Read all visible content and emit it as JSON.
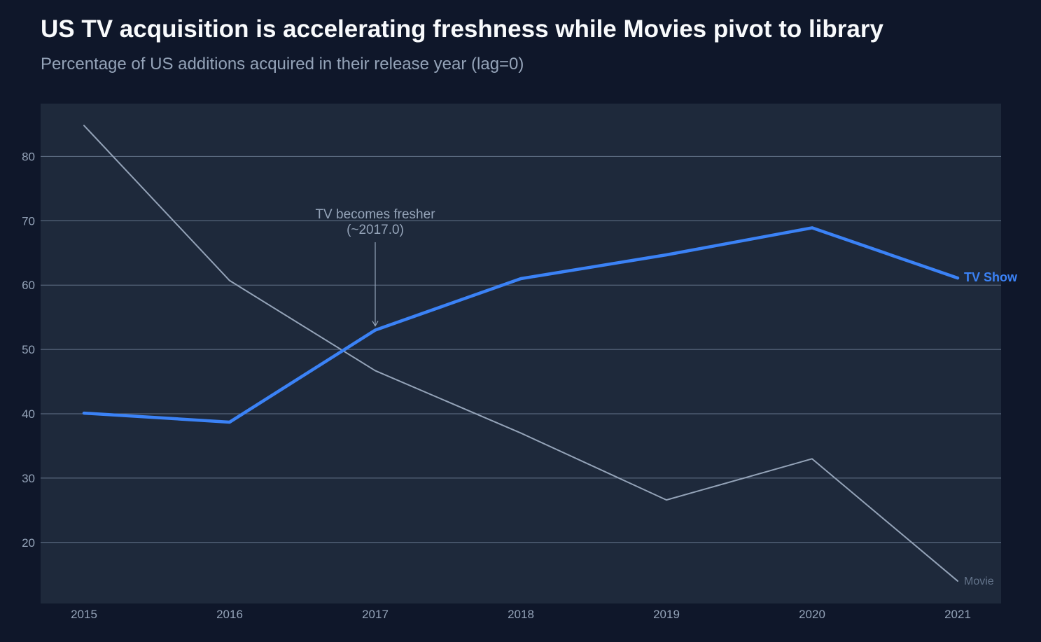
{
  "chart_data": {
    "type": "line",
    "title": "US TV acquisition is accelerating freshness while Movies pivot to library",
    "subtitle": "Percentage of US additions acquired in their release year (lag=0)",
    "x": [
      "2015",
      "2016",
      "2017",
      "2018",
      "2019",
      "2020",
      "2021"
    ],
    "ylim": [
      10,
      88
    ],
    "yticks": [
      "20",
      "30",
      "40",
      "50",
      "60",
      "70",
      "80"
    ],
    "grid": true,
    "series": [
      {
        "name": "Movie",
        "color": "#94a3b8",
        "values": [
          84.8,
          60.7,
          46.7,
          37.0,
          26.6,
          33.0,
          14.0
        ]
      },
      {
        "name": "TV Show",
        "color": "#3b82f6",
        "values": [
          40.1,
          38.7,
          53.0,
          61.0,
          64.7,
          68.9,
          61.1
        ]
      }
    ],
    "annotation": {
      "line1": "TV becomes fresher",
      "line2": "(~2017.0)",
      "x_value": 2017,
      "y_value": 53.0
    }
  }
}
